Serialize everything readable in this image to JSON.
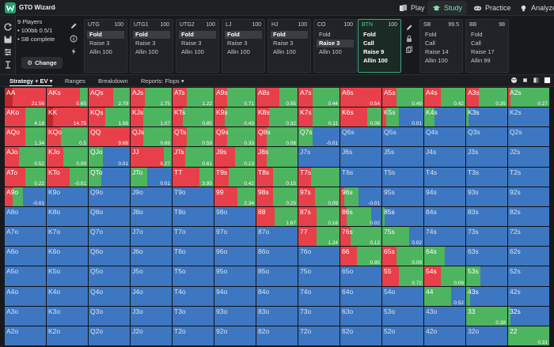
{
  "app": {
    "title": "GTO Wizard",
    "nav": [
      {
        "label": "Play",
        "icon": "play-icon",
        "active": false
      },
      {
        "label": "Study",
        "icon": "study-icon",
        "active": true
      },
      {
        "label": "Practice",
        "icon": "practice-icon",
        "active": false
      },
      {
        "label": "Analyze",
        "icon": "analyze-icon",
        "active": false
      }
    ]
  },
  "game": {
    "players": "9 Players",
    "stakes": "• 100bb 0.5/1",
    "mode": "• SB complete",
    "change_label": "Change"
  },
  "positions": [
    {
      "name": "UTG",
      "stack": "100",
      "actions": [
        "Fold",
        "Raise 3",
        "Allin 100"
      ],
      "selected": 0,
      "active": false
    },
    {
      "name": "UTG1",
      "stack": "100",
      "actions": [
        "Fold",
        "Raise 3",
        "Allin 100"
      ],
      "selected": 0,
      "active": false
    },
    {
      "name": "UTG2",
      "stack": "100",
      "actions": [
        "Fold",
        "Raise 3",
        "Allin 100"
      ],
      "selected": 0,
      "active": false
    },
    {
      "name": "LJ",
      "stack": "100",
      "actions": [
        "Fold",
        "Raise 3",
        "Allin 100"
      ],
      "selected": 0,
      "active": false
    },
    {
      "name": "HJ",
      "stack": "100",
      "actions": [
        "Fold",
        "Raise 3",
        "Allin 100"
      ],
      "selected": 0,
      "active": false
    },
    {
      "name": "CO",
      "stack": "100",
      "actions": [
        "Fold",
        "Raise 3",
        "Allin 100"
      ],
      "selected": 1,
      "active": false
    },
    {
      "name": "BTN",
      "stack": "100",
      "actions": [
        "Fold",
        "Call",
        "Raise 9",
        "Allin 100"
      ],
      "selected": -1,
      "active": true
    },
    {
      "name": "SB",
      "stack": "99.5",
      "actions": [
        "Fold",
        "Call",
        "Raise 14",
        "Allin 100"
      ],
      "selected": -1,
      "active": false
    },
    {
      "name": "BB",
      "stack": "98",
      "actions": [
        "Fold",
        "Call",
        "Raise 17",
        "Allin 99"
      ],
      "selected": -1,
      "active": false
    }
  ],
  "tabs": [
    {
      "label": "Strategy + EV ▾",
      "active": true
    },
    {
      "label": "Ranges",
      "active": false
    },
    {
      "label": "Breakdown",
      "active": false
    },
    {
      "label": "Reports: Flops ▾",
      "active": false
    }
  ],
  "colors": {
    "allin": "#c0282b",
    "raise": "#e8404a",
    "call": "#4db45f",
    "fold": "#3d77c2"
  },
  "hands": [
    [
      "AA",
      "AKs",
      "AQs",
      "AJs",
      "ATs",
      "A9s",
      "A8s",
      "A7s",
      "A6s",
      "A5s",
      "A4s",
      "A3s",
      "A2s"
    ],
    [
      "AKo",
      "KK",
      "KQs",
      "KJs",
      "KTs",
      "K9s",
      "K8s",
      "K7s",
      "K6s",
      "K5s",
      "K4s",
      "K3s",
      "K2s"
    ],
    [
      "AQo",
      "KQo",
      "QQ",
      "QJs",
      "QTs",
      "Q9s",
      "Q8s",
      "Q7s",
      "Q6s",
      "Q5s",
      "Q4s",
      "Q3s",
      "Q2s"
    ],
    [
      "AJo",
      "KJo",
      "QJo",
      "JJ",
      "JTs",
      "J9s",
      "J8s",
      "J7s",
      "J6s",
      "J5s",
      "J4s",
      "J3s",
      "J2s"
    ],
    [
      "ATo",
      "KTo",
      "QTo",
      "JTo",
      "TT",
      "T9s",
      "T8s",
      "T7s",
      "T6s",
      "T5s",
      "T4s",
      "T3s",
      "T2s"
    ],
    [
      "A9o",
      "K9o",
      "Q9o",
      "J9o",
      "T9o",
      "99",
      "98s",
      "97s",
      "96s",
      "95s",
      "94s",
      "93s",
      "92s"
    ],
    [
      "A8o",
      "K8o",
      "Q8o",
      "J8o",
      "T8o",
      "98o",
      "88",
      "87s",
      "86s",
      "85s",
      "84s",
      "83s",
      "82s"
    ],
    [
      "A7o",
      "K7o",
      "Q7o",
      "J7o",
      "T7o",
      "97o",
      "87o",
      "77",
      "76s",
      "75s",
      "74s",
      "73s",
      "72s"
    ],
    [
      "A6o",
      "K6o",
      "Q6o",
      "J6o",
      "T6o",
      "96o",
      "86o",
      "76o",
      "66",
      "65s",
      "64s",
      "63s",
      "62s"
    ],
    [
      "A5o",
      "K5o",
      "Q5o",
      "J5o",
      "T5o",
      "95o",
      "85o",
      "75o",
      "65o",
      "55",
      "54s",
      "53s",
      "52s"
    ],
    [
      "A4o",
      "K4o",
      "Q4o",
      "J4o",
      "T4o",
      "94o",
      "84o",
      "74o",
      "64o",
      "54o",
      "44",
      "43s",
      "42s"
    ],
    [
      "A3o",
      "K3o",
      "Q3o",
      "J3o",
      "T3o",
      "93o",
      "83o",
      "73o",
      "63o",
      "53o",
      "43o",
      "33",
      "32s"
    ],
    [
      "A2o",
      "K2o",
      "Q2o",
      "J2o",
      "T2o",
      "92o",
      "82o",
      "72o",
      "62o",
      "52o",
      "42o",
      "32o",
      "22"
    ]
  ],
  "ev": {
    "0-0": "21.56",
    "0-1": "5.65",
    "0-2": "2.79",
    "0-3": "1.75",
    "0-4": "1.22",
    "0-5": "0.71",
    "0-6": "0.55",
    "0-7": "0.44",
    "0-8": "0.54",
    "0-9": "0.49",
    "0-10": "0.42",
    "0-11": "0.35",
    "0-12": "0.27",
    "1-0": "4.18",
    "1-1": "14.75",
    "1-2": "1.56",
    "1-3": "1.07",
    "1-4": "0.85",
    "1-5": "0.43",
    "1-6": "0.32",
    "1-7": "0.11",
    "1-8": "0.08",
    "1-9": "0.01",
    "2-0": "1.34",
    "2-1": "0.5",
    "2-2": "9.68",
    "2-3": "0.69",
    "2-4": "0.59",
    "2-5": "0.33",
    "2-6": "0.08",
    "2-7": "-0.01",
    "3-0": "0.52",
    "3-1": "0.09",
    "3-2": "0.01",
    "3-3": "6.27",
    "3-4": "0.61",
    "3-5": "0.13",
    "4-0": "0.22",
    "4-1": "-0.01",
    "4-3": "0.01",
    "4-4": "3.95",
    "4-5": "0.42",
    "4-6": "0.15",
    "5-0": "-0.01",
    "5-5": "2.34",
    "5-6": "0.25",
    "5-7": "0.09",
    "5-8": "-0.01",
    "6-6": "1.67",
    "6-7": "0.16",
    "6-8": "0.02",
    "7-7": "1.24",
    "7-8": "0.12",
    "7-9": "0.02",
    "8-8": "0.95",
    "8-9": "0.09",
    "9-9": "0.72",
    "9-10": "0.09",
    "10-10": "0.52",
    "11-11": "0.38",
    "12-12": "0.31"
  },
  "strategy": {
    "0-0": [
      20,
      80,
      0
    ],
    "0-1": [
      0,
      80,
      20
    ],
    "0-2": [
      0,
      60,
      40
    ],
    "0-3": [
      0,
      35,
      65
    ],
    "0-4": [
      0,
      35,
      65
    ],
    "0-5": [
      0,
      30,
      70
    ],
    "0-6": [
      0,
      55,
      45
    ],
    "0-7": [
      0,
      35,
      65
    ],
    "0-8": [
      0,
      100,
      0
    ],
    "0-9": [
      0,
      35,
      65
    ],
    "0-10": [
      0,
      40,
      60
    ],
    "0-11": [
      0,
      30,
      70
    ],
    "0-12": [
      0,
      5,
      95
    ],
    "1-0": [
      0,
      50,
      50
    ],
    "1-1": [
      15,
      85,
      0
    ],
    "1-2": [
      0,
      40,
      60
    ],
    "1-3": [
      0,
      30,
      70
    ],
    "1-4": [
      0,
      25,
      75
    ],
    "1-5": [
      0,
      25,
      75
    ],
    "1-6": [
      0,
      30,
      70
    ],
    "1-7": [
      0,
      35,
      65
    ],
    "1-8": [
      0,
      65,
      35
    ],
    "1-9": [
      0,
      10,
      30
    ],
    "1-10": [
      0,
      0,
      25
    ],
    "1-11": [
      0,
      0,
      5
    ],
    "2-0": [
      0,
      50,
      50
    ],
    "2-1": [
      0,
      35,
      65
    ],
    "2-2": [
      0,
      100,
      0
    ],
    "2-3": [
      0,
      30,
      70
    ],
    "2-4": [
      0,
      35,
      65
    ],
    "2-5": [
      0,
      30,
      70
    ],
    "2-6": [
      0,
      25,
      75
    ],
    "2-7": [
      0,
      0,
      35
    ],
    "3-0": [
      0,
      35,
      65
    ],
    "3-1": [
      0,
      40,
      60
    ],
    "3-2": [
      0,
      0,
      35
    ],
    "3-3": [
      0,
      80,
      20
    ],
    "3-4": [
      0,
      30,
      70
    ],
    "3-5": [
      0,
      50,
      50
    ],
    "3-6": [
      0,
      25,
      75
    ],
    "4-0": [
      0,
      50,
      50
    ],
    "4-1": [
      0,
      55,
      45
    ],
    "4-2": [
      0,
      0,
      30
    ],
    "4-3": [
      0,
      0,
      40
    ],
    "4-4": [
      0,
      65,
      35
    ],
    "4-5": [
      0,
      35,
      65
    ],
    "4-6": [
      0,
      40,
      60
    ],
    "4-7": [
      0,
      30,
      70
    ],
    "5-0": [
      0,
      20,
      25
    ],
    "5-5": [
      0,
      55,
      45
    ],
    "5-6": [
      0,
      40,
      60
    ],
    "5-7": [
      0,
      40,
      60
    ],
    "5-8": [
      0,
      10,
      35
    ],
    "6-6": [
      0,
      45,
      55
    ],
    "6-7": [
      0,
      45,
      55
    ],
    "6-8": [
      0,
      15,
      60
    ],
    "6-9": [
      0,
      0,
      5
    ],
    "7-7": [
      0,
      45,
      55
    ],
    "7-8": [
      0,
      25,
      75
    ],
    "7-9": [
      0,
      0,
      65
    ],
    "8-8": [
      0,
      40,
      60
    ],
    "8-9": [
      0,
      35,
      65
    ],
    "8-10": [
      0,
      0,
      50
    ],
    "9-9": [
      0,
      40,
      60
    ],
    "9-10": [
      0,
      40,
      60
    ],
    "9-11": [
      0,
      0,
      35
    ],
    "10-10": [
      0,
      0,
      65
    ],
    "10-11": [
      0,
      0,
      10
    ],
    "11-11": [
      0,
      0,
      100
    ],
    "11-12": [
      0,
      0,
      5
    ],
    "12-12": [
      0,
      0,
      100
    ]
  }
}
